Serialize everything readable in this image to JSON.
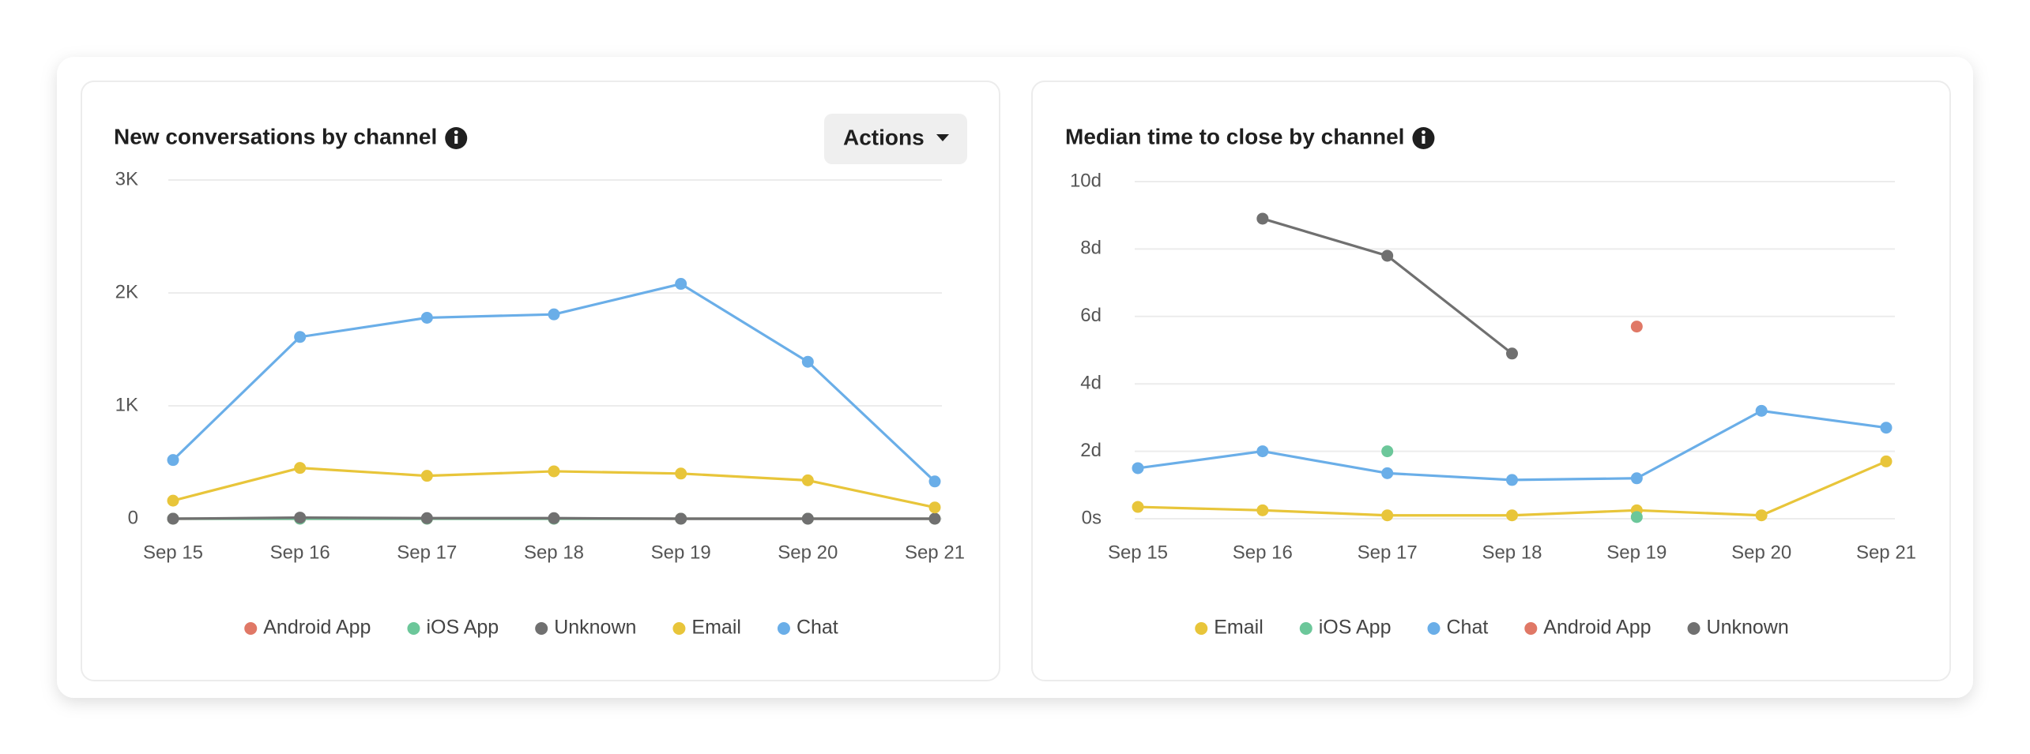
{
  "chart_data": [
    {
      "type": "line",
      "title": "New conversations by channel",
      "button_label": "Actions",
      "categories": [
        "Sep 15",
        "Sep 16",
        "Sep 17",
        "Sep 18",
        "Sep 19",
        "Sep 20",
        "Sep 21"
      ],
      "ylim": [
        0,
        3000
      ],
      "yticks": [
        0,
        {
          "value": 1000,
          "label": "1K"
        },
        {
          "value": 2000,
          "label": "2K"
        },
        {
          "value": 3000,
          "label": "3K"
        }
      ],
      "grid": true,
      "series": [
        {
          "name": "Android App",
          "color": "#e07866",
          "values": [
            0,
            0,
            0,
            0,
            0,
            0,
            0
          ]
        },
        {
          "name": "iOS App",
          "color": "#6cc79a",
          "values": [
            0,
            0,
            0,
            0,
            0,
            0,
            0
          ]
        },
        {
          "name": "Unknown",
          "color": "#707070",
          "values": [
            0,
            10,
            5,
            5,
            0,
            0,
            0
          ]
        },
        {
          "name": "Email",
          "color": "#e8c53a",
          "values": [
            160,
            450,
            380,
            420,
            400,
            340,
            100
          ]
        },
        {
          "name": "Chat",
          "color": "#6aaee8",
          "values": [
            520,
            1610,
            1780,
            1810,
            2080,
            1390,
            330
          ]
        }
      ]
    },
    {
      "type": "line",
      "title": "Median time to close by channel",
      "categories": [
        "Sep 15",
        "Sep 16",
        "Sep 17",
        "Sep 18",
        "Sep 19",
        "Sep 20",
        "Sep 21"
      ],
      "ylim": [
        0,
        10
      ],
      "yticks": [
        {
          "value": 0,
          "label": "0s"
        },
        {
          "value": 2,
          "label": "2d"
        },
        {
          "value": 4,
          "label": "4d"
        },
        {
          "value": 6,
          "label": "6d"
        },
        {
          "value": 8,
          "label": "8d"
        },
        {
          "value": 10,
          "label": "10d"
        }
      ],
      "grid": true,
      "series": [
        {
          "name": "Email",
          "color": "#e8c53a",
          "values": [
            0.35,
            0.25,
            0.1,
            0.1,
            0.25,
            0.1,
            1.7
          ]
        },
        {
          "name": "iOS App",
          "color": "#6cc79a",
          "values": [
            null,
            null,
            2.0,
            null,
            0.05,
            null,
            null
          ]
        },
        {
          "name": "Chat",
          "color": "#6aaee8",
          "values": [
            1.5,
            2.0,
            1.35,
            1.15,
            1.2,
            3.2,
            2.7
          ]
        },
        {
          "name": "Android App",
          "color": "#e07866",
          "values": [
            null,
            null,
            null,
            null,
            5.7,
            null,
            null
          ]
        },
        {
          "name": "Unknown",
          "color": "#707070",
          "values": [
            null,
            8.9,
            7.8,
            4.9,
            null,
            null,
            null
          ]
        }
      ]
    }
  ]
}
